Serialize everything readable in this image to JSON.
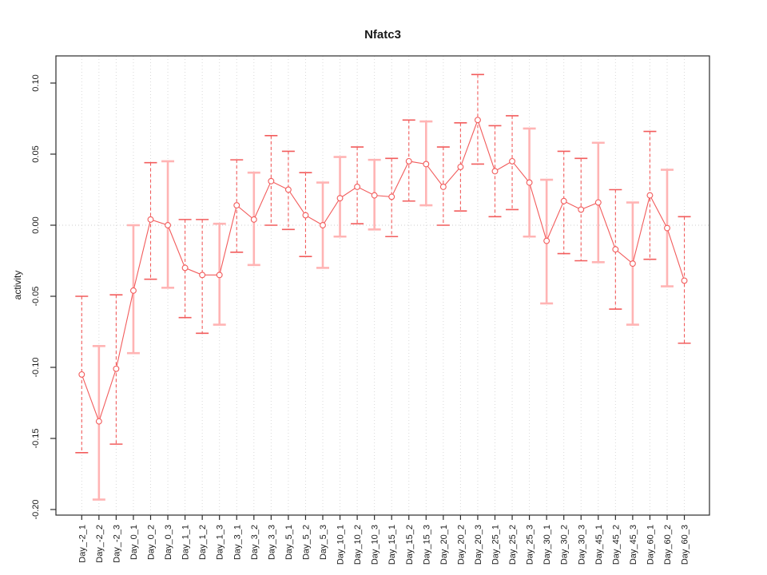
{
  "figure": {
    "window_background": "#ffffff"
  },
  "chart_data": {
    "type": "line",
    "title": "Nfatc3",
    "xlabel": "",
    "ylabel": "activity",
    "ylim": [
      -0.205,
      0.115
    ],
    "yticks": [
      0.1,
      0.05,
      0.0,
      -0.05,
      -0.1,
      -0.15,
      -0.2
    ],
    "grid": "vertical dotted gridline at every category; dotted horizontal line at y=0",
    "legend_position": "none",
    "marker": "open-circle",
    "error_bars": true,
    "categories": [
      "Day_-2_1",
      "Day_-2_2",
      "Day_-2_3",
      "Day_0_1",
      "Day_0_2",
      "Day_0_3",
      "Day_1_1",
      "Day_1_2",
      "Day_1_3",
      "Day_3_1",
      "Day_3_2",
      "Day_3_3",
      "Day_5_1",
      "Day_5_2",
      "Day_5_3",
      "Day_10_1",
      "Day_10_2",
      "Day_10_3",
      "Day_15_1",
      "Day_15_2",
      "Day_15_3",
      "Day_20_1",
      "Day_20_2",
      "Day_20_3",
      "Day_25_1",
      "Day_25_2",
      "Day_25_3",
      "Day_30_1",
      "Day_30_2",
      "Day_30_3",
      "Day_45_1",
      "Day_45_2",
      "Day_45_3",
      "Day_60_1",
      "Day_60_2",
      "Day_60_3"
    ],
    "series": [
      {
        "name": "activity",
        "values": [
          -0.105,
          -0.138,
          -0.101,
          -0.046,
          0.004,
          0.0,
          -0.03,
          -0.035,
          -0.035,
          0.014,
          0.004,
          0.031,
          0.025,
          0.007,
          0.0,
          0.019,
          0.027,
          0.021,
          0.02,
          0.045,
          0.043,
          0.027,
          0.041,
          0.074,
          0.038,
          0.045,
          0.03,
          -0.011,
          0.017,
          0.011,
          0.016,
          -0.017,
          -0.027,
          0.021,
          -0.002,
          -0.039
        ],
        "error_high": [
          -0.05,
          -0.085,
          -0.049,
          0.0,
          0.044,
          0.045,
          0.004,
          0.004,
          0.001,
          0.046,
          0.037,
          0.063,
          0.052,
          0.037,
          0.03,
          0.048,
          0.055,
          0.046,
          0.047,
          0.074,
          0.073,
          0.055,
          0.072,
          0.106,
          0.07,
          0.077,
          0.068,
          0.032,
          0.052,
          0.047,
          0.058,
          0.025,
          0.016,
          0.066,
          0.039,
          0.006
        ],
        "error_low": [
          -0.16,
          -0.193,
          -0.154,
          -0.09,
          -0.038,
          -0.044,
          -0.065,
          -0.076,
          -0.07,
          -0.019,
          -0.028,
          0.0,
          -0.003,
          -0.022,
          -0.03,
          -0.008,
          0.001,
          -0.003,
          -0.008,
          0.017,
          0.014,
          0.0,
          0.01,
          0.043,
          0.006,
          0.011,
          -0.008,
          -0.055,
          -0.02,
          -0.025,
          -0.026,
          -0.059,
          -0.07,
          -0.024,
          -0.043,
          -0.083
        ],
        "bar_styles": [
          "dashed",
          "solid_light",
          "dashed",
          "solid_light",
          "dashed",
          "solid_light",
          "dashed",
          "dashed",
          "solid_light",
          "dashed",
          "solid_light",
          "dashed",
          "dashed",
          "dashed",
          "solid_light",
          "solid_light",
          "dashed",
          "solid_light",
          "dashed",
          "dashed",
          "solid_light",
          "dashed",
          "dashed",
          "dashed",
          "dashed",
          "dashed",
          "solid_light",
          "solid_light",
          "dashed",
          "dashed",
          "solid_light",
          "dashed",
          "solid_light",
          "dashed",
          "solid_light",
          "dashed"
        ]
      }
    ],
    "colors": {
      "series": "#f25c5c",
      "light_error_bar": "#ffb4b4",
      "gridline": "#d9d9d9",
      "zero_line": "#cccccc",
      "axis": "#2b2b2b",
      "text": "#1a1a1a"
    }
  }
}
